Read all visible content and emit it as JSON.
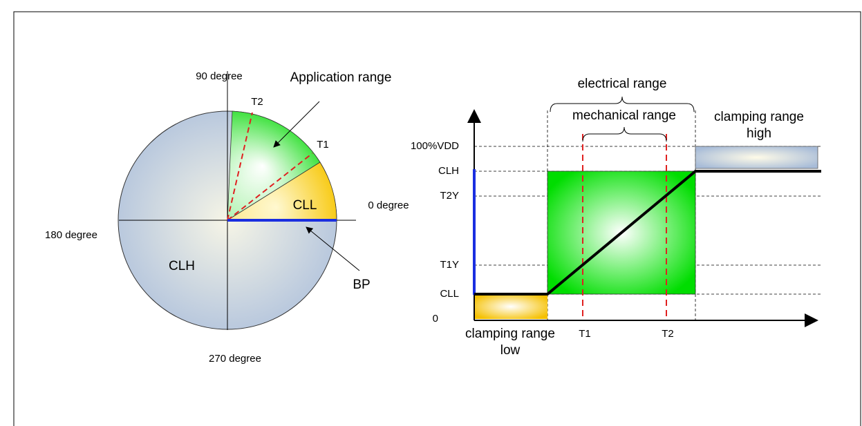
{
  "left": {
    "deg90": "90 degree",
    "app_range": "Application range",
    "t2": "T2",
    "t1": "T1",
    "cll": "CLL",
    "deg0": "0 degree",
    "deg180": "180 degree",
    "clh": "CLH",
    "bp": "BP",
    "deg270": "270 degree"
  },
  "right": {
    "electrical": "electrical range",
    "mechanical": "mechanical range",
    "clamp_high": [
      "clamping range",
      "high"
    ],
    "clamp_low": [
      "clamping range",
      "low"
    ],
    "levels": [
      "100%VDD",
      "CLH",
      "T2Y",
      "T1Y",
      "CLL",
      "0"
    ],
    "t1": "T1",
    "t2": "T2"
  }
}
